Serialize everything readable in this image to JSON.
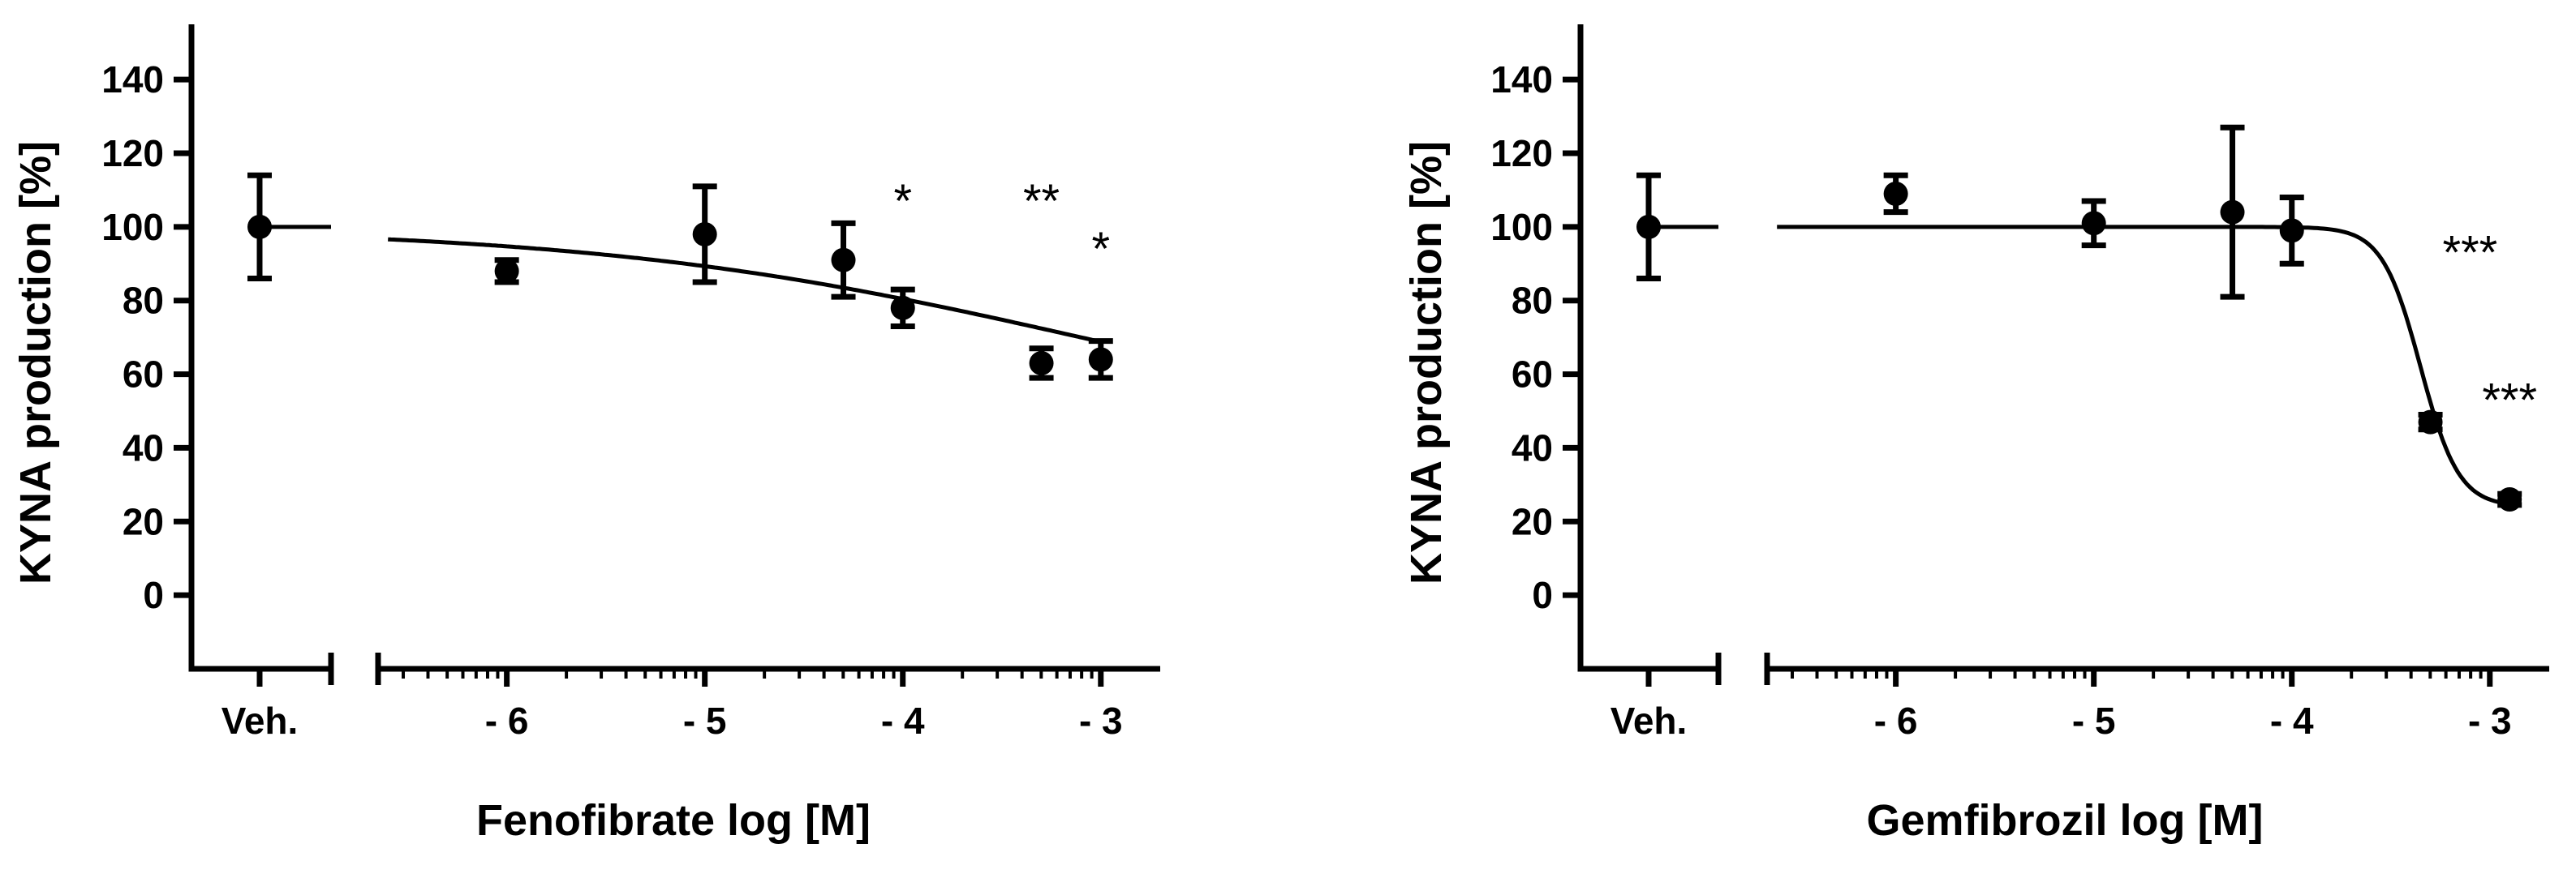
{
  "chart_data": [
    {
      "type": "scatter",
      "subtype": "dose-response with fitted curve and error bars",
      "xlabel": "Fenofibrate log [M]",
      "ylabel": "KYNA production [%]",
      "ylim": [
        -20,
        155
      ],
      "xlim": [
        -6.65,
        -2.7
      ],
      "yticks": [
        0,
        20,
        40,
        60,
        80,
        100,
        120,
        140
      ],
      "ytick_labels": [
        "0",
        "20",
        "40",
        "60",
        "80",
        "100",
        "120",
        "140"
      ],
      "xticks": [
        -6,
        -5,
        -4,
        -3
      ],
      "xtick_labels": [
        "- 6",
        "- 5",
        "- 4",
        "- 3"
      ],
      "vehicle": {
        "label": "Veh.",
        "mean": 100,
        "err": 14
      },
      "points": [
        {
          "x": -6.0,
          "y": 88,
          "err": 3
        },
        {
          "x": -5.0,
          "y": 98,
          "err": 13
        },
        {
          "x": -4.3,
          "y": 91,
          "err": 10
        },
        {
          "x": -4.0,
          "y": 78,
          "err": 5
        },
        {
          "x": -3.3,
          "y": 63,
          "err": 4
        },
        {
          "x": -3.0,
          "y": 64,
          "err": 5
        }
      ],
      "fit": {
        "top": 100,
        "bottom": 40,
        "logEC50": -3.1,
        "hill": 0.35,
        "x_start": -6.6,
        "x_end": -3.0
      },
      "annotations": [
        {
          "text": "*",
          "x": -4.0,
          "y": 107
        },
        {
          "text": "**",
          "x": -3.3,
          "y": 107
        },
        {
          "text": "*",
          "x": -3.0,
          "y": 94
        }
      ]
    },
    {
      "type": "scatter",
      "subtype": "dose-response with fitted curve and error bars",
      "xlabel": "Gemfibrozil log [M]",
      "ylabel": "KYNA production [%]",
      "ylim": [
        -20,
        155
      ],
      "xlim": [
        -6.65,
        -2.7
      ],
      "yticks": [
        0,
        20,
        40,
        60,
        80,
        100,
        120,
        140
      ],
      "ytick_labels": [
        "0",
        "20",
        "40",
        "60",
        "80",
        "100",
        "120",
        "140"
      ],
      "xticks": [
        -6,
        -5,
        -4,
        -3
      ],
      "xtick_labels": [
        "- 6",
        "- 5",
        "- 4",
        "- 3"
      ],
      "vehicle": {
        "label": "Veh.",
        "mean": 100,
        "err": 14
      },
      "points": [
        {
          "x": -6.0,
          "y": 109,
          "err": 5
        },
        {
          "x": -5.0,
          "y": 101,
          "err": 6
        },
        {
          "x": -4.3,
          "y": 104,
          "err": 23
        },
        {
          "x": -4.0,
          "y": 99,
          "err": 9
        },
        {
          "x": -3.3,
          "y": 47,
          "err": 2
        },
        {
          "x": -2.9,
          "y": 26,
          "err": 1.5
        }
      ],
      "fit": {
        "top": 100,
        "bottom": 24,
        "logEC50": -3.35,
        "hill": 4.5,
        "x_start": -6.6,
        "x_end": -2.9
      },
      "annotations": [
        {
          "text": "***",
          "x": -3.1,
          "y": 93
        },
        {
          "text": "***",
          "x": -2.9,
          "y": 53
        }
      ]
    }
  ]
}
